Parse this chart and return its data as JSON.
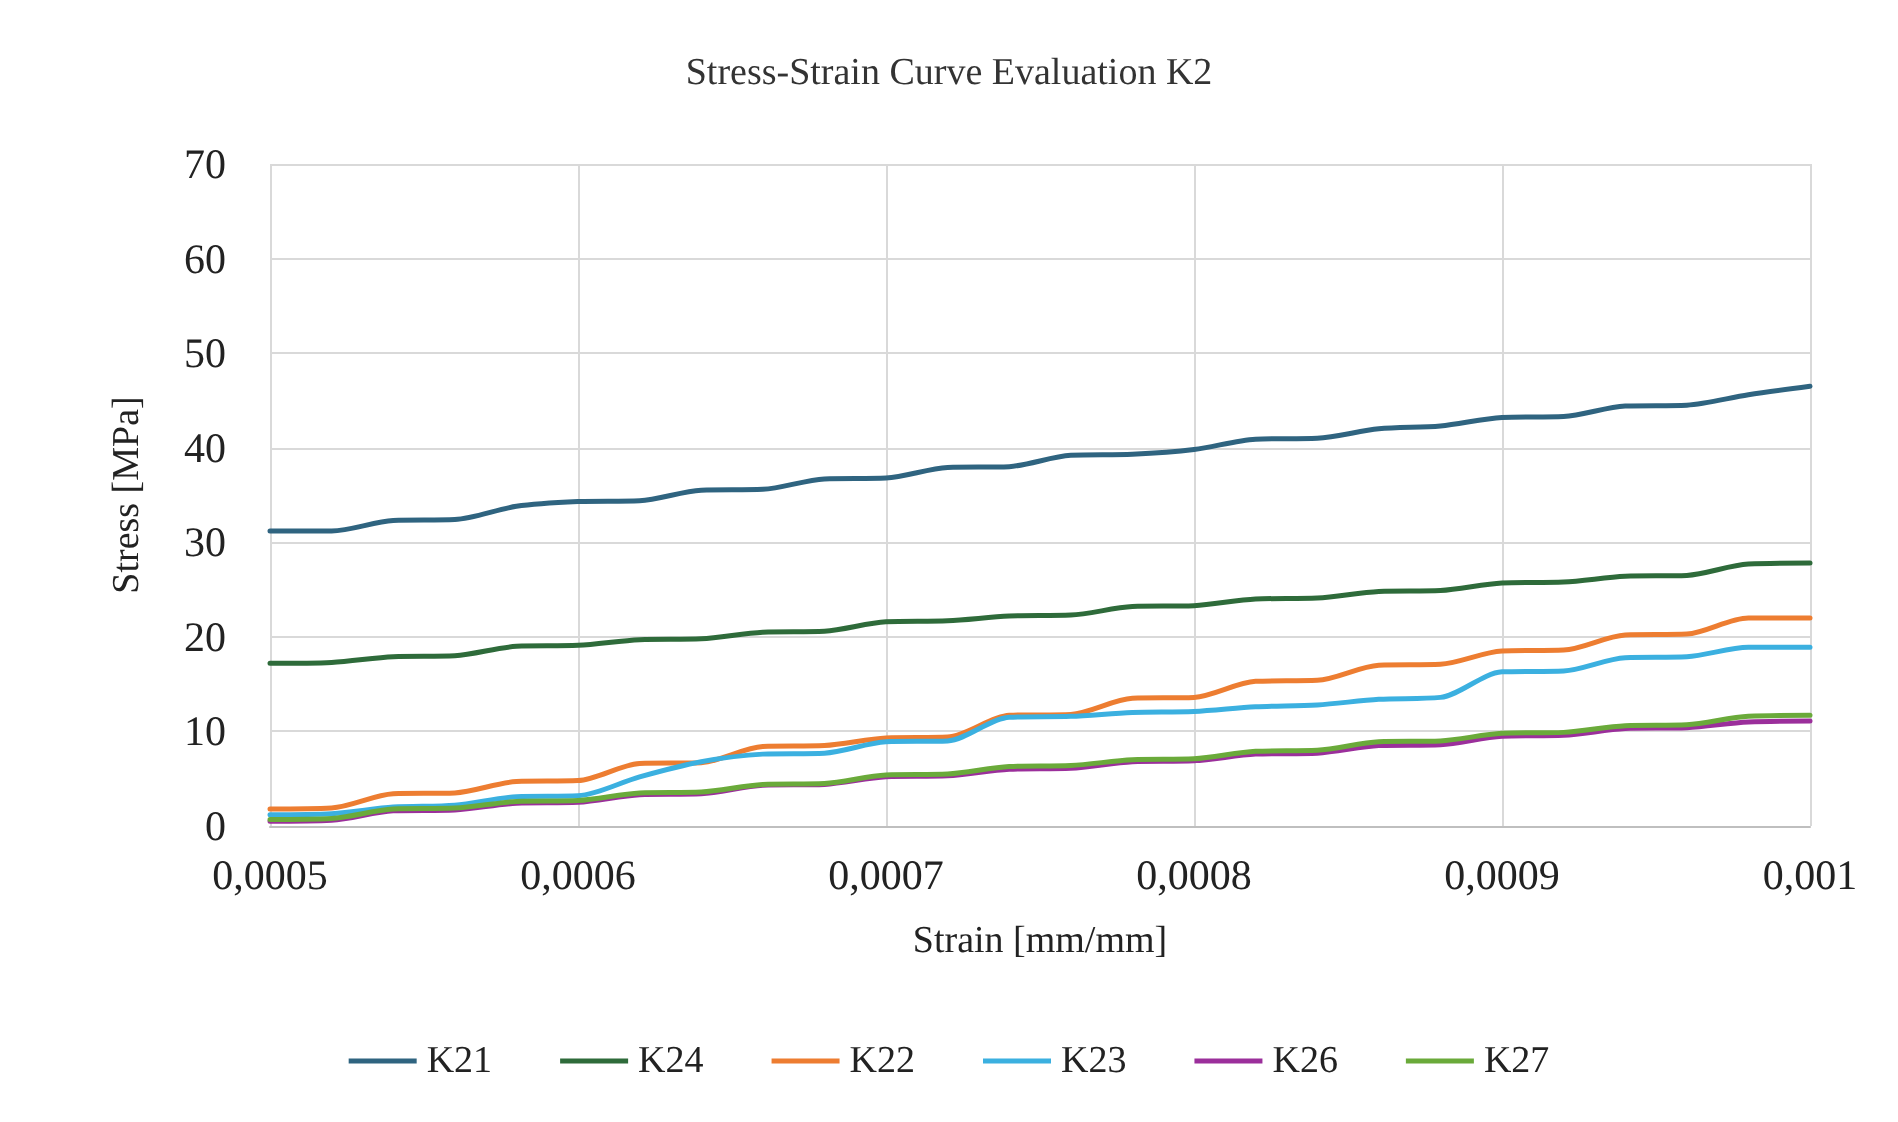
{
  "chart_data": {
    "type": "line",
    "title": "Stress-Strain Curve Evaluation K2",
    "xlabel": "Strain [mm/mm]",
    "ylabel": "Stress [MPa]",
    "x": [
      0.0005,
      0.00052,
      0.00054,
      0.00056,
      0.00058,
      0.0006,
      0.00062,
      0.00064,
      0.00066,
      0.00068,
      0.0007,
      0.00072,
      0.00074,
      0.00076,
      0.00078,
      0.0008,
      0.00082,
      0.00084,
      0.00086,
      0.00088,
      0.0009,
      0.00092,
      0.00094,
      0.00096,
      0.00098,
      0.001
    ],
    "series": [
      {
        "name": "K21",
        "color": "#2f6480",
        "values": [
          31.2,
          31.2,
          32.3,
          32.4,
          33.8,
          34.3,
          34.4,
          35.5,
          35.6,
          36.7,
          36.8,
          37.9,
          38.0,
          39.2,
          39.3,
          39.8,
          40.9,
          41.0,
          42.0,
          42.3,
          43.2,
          43.3,
          44.4,
          44.5,
          45.6,
          46.5
        ]
      },
      {
        "name": "K24",
        "color": "#2e6b3a",
        "values": [
          17.2,
          17.3,
          17.9,
          18.0,
          19.0,
          19.1,
          19.7,
          19.8,
          20.5,
          20.6,
          21.6,
          21.7,
          22.2,
          22.3,
          23.2,
          23.3,
          24.0,
          24.1,
          24.8,
          24.9,
          25.7,
          25.8,
          26.4,
          26.5,
          27.7,
          27.8
        ]
      },
      {
        "name": "K22",
        "color": "#ed7d31",
        "values": [
          1.8,
          1.9,
          3.4,
          3.5,
          4.7,
          4.8,
          6.6,
          6.7,
          8.4,
          8.5,
          9.3,
          9.4,
          11.7,
          11.8,
          13.5,
          13.6,
          15.3,
          15.4,
          17.0,
          17.1,
          18.5,
          18.6,
          20.2,
          20.3,
          22.0,
          22.0
        ]
      },
      {
        "name": "K23",
        "color": "#3bb0e0",
        "values": [
          1.2,
          1.3,
          2.0,
          2.2,
          3.1,
          3.2,
          5.2,
          6.8,
          7.6,
          7.7,
          8.9,
          9.0,
          11.5,
          11.6,
          12.0,
          12.1,
          12.6,
          12.8,
          13.4,
          13.6,
          16.3,
          16.4,
          17.8,
          17.9,
          18.9,
          18.9
        ]
      },
      {
        "name": "K26",
        "color": "#9b2f9b",
        "values": [
          0.5,
          0.6,
          1.6,
          1.7,
          2.4,
          2.5,
          3.3,
          3.4,
          4.3,
          4.4,
          5.2,
          5.3,
          6.0,
          6.1,
          6.8,
          6.9,
          7.6,
          7.7,
          8.5,
          8.6,
          9.5,
          9.6,
          10.3,
          10.4,
          11.0,
          11.1
        ]
      },
      {
        "name": "K27",
        "color": "#6aaa3a",
        "values": [
          0.7,
          0.8,
          1.8,
          1.9,
          2.6,
          2.7,
          3.5,
          3.6,
          4.4,
          4.5,
          5.4,
          5.5,
          6.3,
          6.4,
          7.0,
          7.1,
          7.9,
          8.0,
          8.9,
          9.0,
          9.8,
          9.9,
          10.6,
          10.7,
          11.6,
          11.7
        ]
      }
    ],
    "xlim": [
      0.0005,
      0.001
    ],
    "xticks": [
      {
        "value": 0.0005,
        "label": "0,0005"
      },
      {
        "value": 0.0006,
        "label": "0,0006"
      },
      {
        "value": 0.0007,
        "label": "0,0007"
      },
      {
        "value": 0.0008,
        "label": "0,0008"
      },
      {
        "value": 0.0009,
        "label": "0,0009"
      },
      {
        "value": 0.001,
        "label": "0,001"
      }
    ],
    "ylim": [
      0,
      70
    ],
    "yticks": [
      0,
      10,
      20,
      30,
      40,
      50,
      60,
      70
    ],
    "grid": true,
    "legend": "bottom",
    "marker": "none",
    "line_style": "solid"
  }
}
